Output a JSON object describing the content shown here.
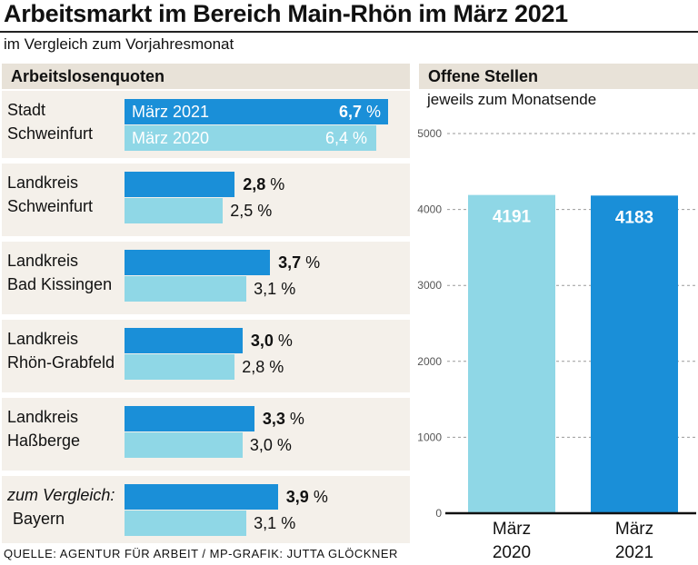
{
  "title": "Arbeitsmarkt im Bereich Main-Rhön im März 2021",
  "subtitle": "im Vergleich zum Vorjahresmonat",
  "left_header": "Arbeitslosenquoten",
  "right_header": "Offene Stellen",
  "right_subtitle": "jeweils zum Monatsende",
  "source": "QUELLE: AGENTUR FÜR ARBEIT / MP-GRAFIK: JUTTA GLÖCKNER",
  "colors": {
    "current": "#1a8fd8",
    "previous": "#8fd7e6",
    "panel": "#f4f0ea",
    "header": "#e8e2d8"
  },
  "rates": {
    "legend_current": "März 2021",
    "legend_previous": "März 2020",
    "unit": "%",
    "rows": [
      {
        "line1": "Stadt",
        "line2": "Schweinfurt",
        "v2021": 6.7,
        "v2020": 6.4,
        "t2021": "6,7",
        "t2020": "6,4"
      },
      {
        "line1": "Landkreis",
        "line2": "Schweinfurt",
        "v2021": 2.8,
        "v2020": 2.5,
        "t2021": "2,8",
        "t2020": "2,5"
      },
      {
        "line1": "Landkreis",
        "line2": "Bad Kissingen",
        "v2021": 3.7,
        "v2020": 3.1,
        "t2021": "3,7",
        "t2020": "3,1"
      },
      {
        "line1": "Landkreis",
        "line2": "Rhön-Grabfeld",
        "v2021": 3.0,
        "v2020": 2.8,
        "t2021": "3,0",
        "t2020": "2,8"
      },
      {
        "line1": "Landkreis",
        "line2": "Haßberge",
        "v2021": 3.3,
        "v2020": 3.0,
        "t2021": "3,3",
        "t2020": "3,0"
      },
      {
        "line1": "zum Vergleich:",
        "line2": "Bayern",
        "v2021": 3.9,
        "v2020": 3.1,
        "t2021": "3,9",
        "t2020": "3,1"
      }
    ]
  },
  "chart_data": [
    {
      "type": "bar",
      "title": "Arbeitslosenquoten",
      "orientation": "horizontal",
      "categories": [
        "Stadt Schweinfurt",
        "Landkreis Schweinfurt",
        "Landkreis Bad Kissingen",
        "Landkreis Rhön-Grabfeld",
        "Landkreis Haßberge",
        "Bayern"
      ],
      "series": [
        {
          "name": "März 2021",
          "values": [
            6.7,
            2.8,
            3.7,
            3.0,
            3.3,
            3.9
          ]
        },
        {
          "name": "März 2020",
          "values": [
            6.4,
            2.5,
            3.1,
            2.8,
            3.0,
            3.1
          ]
        }
      ],
      "unit": "%"
    },
    {
      "type": "bar",
      "title": "Offene Stellen",
      "subtitle": "jeweils zum Monatsende",
      "categories": [
        "März 2020",
        "März 2021"
      ],
      "cat_line1": [
        "März",
        "März"
      ],
      "cat_line2": [
        "2020",
        "2021"
      ],
      "values": [
        4191,
        4183
      ],
      "labels": [
        "4191",
        "4183"
      ],
      "yticks": [
        0,
        1000,
        2000,
        3000,
        4000,
        5000
      ],
      "ylim": [
        0,
        5000
      ],
      "grid": true
    }
  ]
}
